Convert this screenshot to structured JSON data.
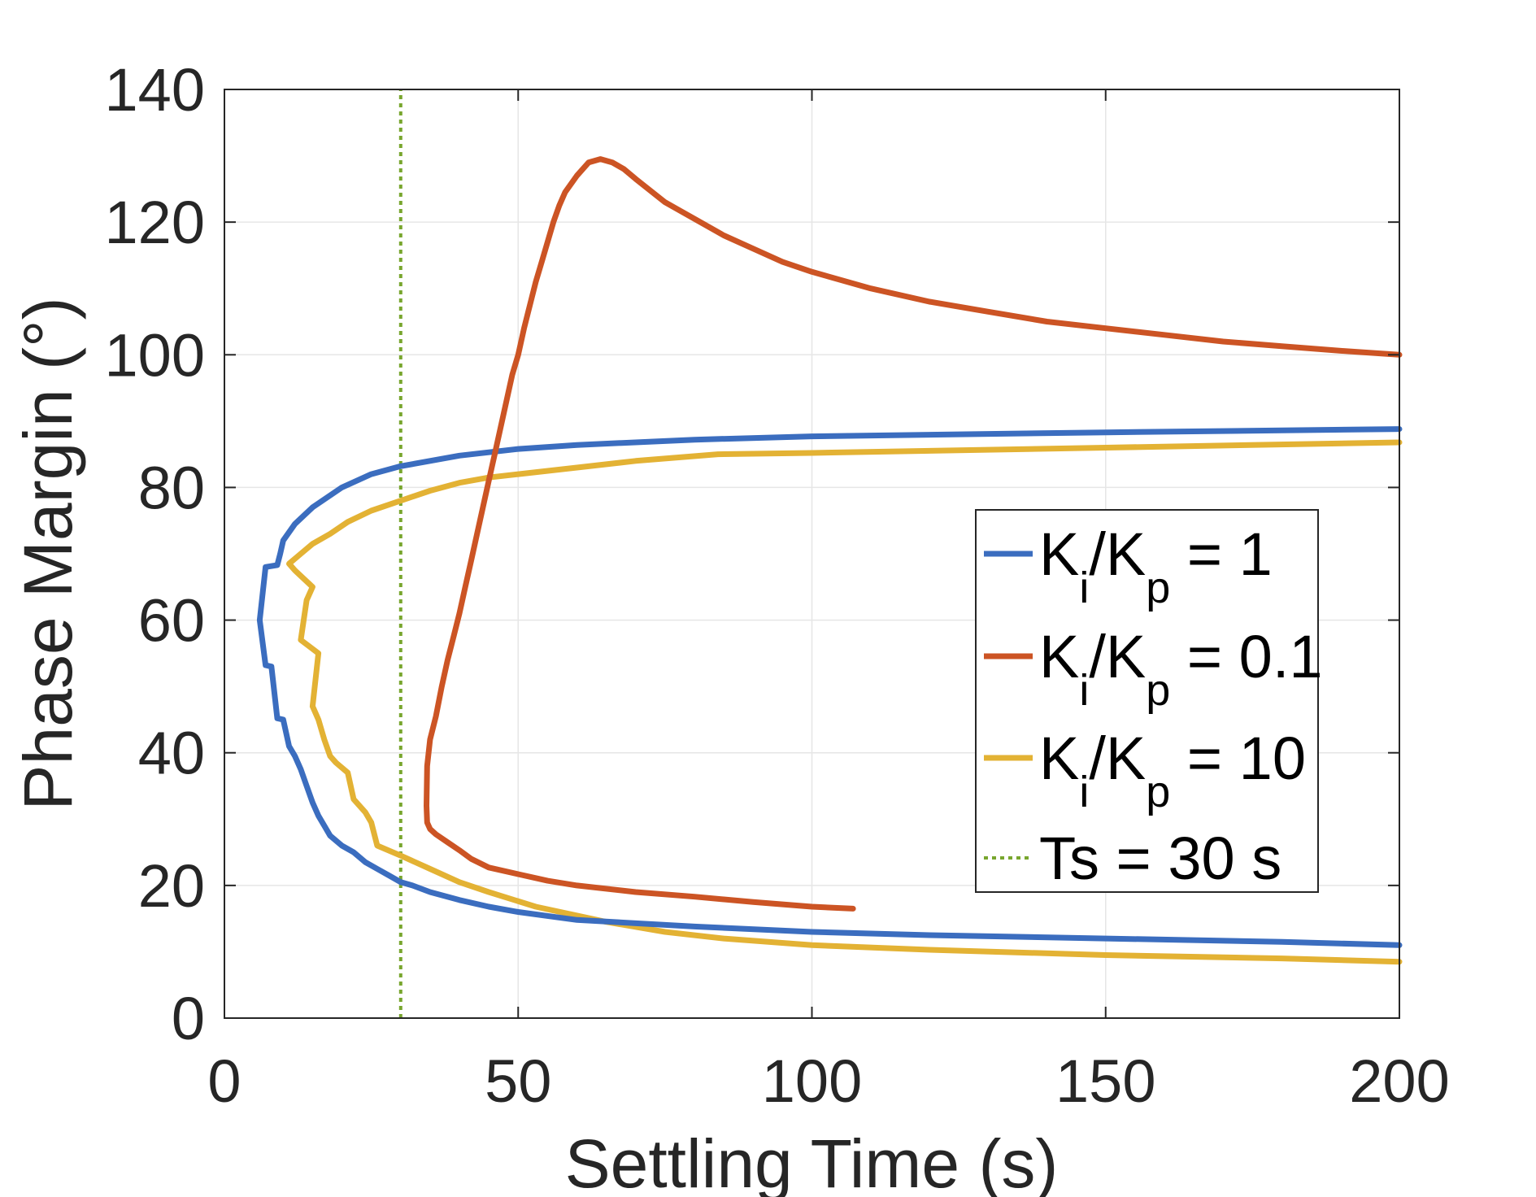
{
  "chart_data": {
    "type": "line",
    "title": "",
    "xlabel": "Settling Time (s)",
    "ylabel": "Phase Margin (°)",
    "xlim": [
      0,
      200
    ],
    "ylim": [
      0,
      140
    ],
    "xticks": [
      0,
      50,
      100,
      150,
      200
    ],
    "yticks": [
      0,
      20,
      40,
      60,
      80,
      100,
      120,
      140
    ],
    "grid": true,
    "legend_position": "right",
    "series": [
      {
        "name": "Ki/Kp = 1",
        "label_main": "K",
        "label_sub1": "i",
        "label_mid": "/K",
        "label_sub2": "p",
        "label_end": " = 1",
        "color": "#3b6dbf",
        "style": "solid",
        "points": [
          [
            200,
            11
          ],
          [
            180,
            11.5
          ],
          [
            150,
            12
          ],
          [
            120,
            12.5
          ],
          [
            100,
            13
          ],
          [
            80,
            13.8
          ],
          [
            60,
            14.8
          ],
          [
            50,
            16
          ],
          [
            45,
            16.8
          ],
          [
            40,
            17.8
          ],
          [
            35,
            19
          ],
          [
            32,
            20
          ],
          [
            30,
            20.5
          ],
          [
            28,
            21.5
          ],
          [
            26,
            22.5
          ],
          [
            24,
            23.5
          ],
          [
            22,
            25
          ],
          [
            20,
            26
          ],
          [
            18,
            27.5
          ],
          [
            17,
            29
          ],
          [
            16,
            30.5
          ],
          [
            15,
            32.5
          ],
          [
            14,
            35
          ],
          [
            13,
            37.5
          ],
          [
            12,
            39.5
          ],
          [
            11,
            41
          ],
          [
            10,
            45
          ],
          [
            9,
            45.2
          ],
          [
            8,
            53
          ],
          [
            7,
            53.2
          ],
          [
            6,
            60
          ],
          [
            7,
            68
          ],
          [
            9,
            68.3
          ],
          [
            9.5,
            70
          ],
          [
            10,
            72
          ],
          [
            12,
            74.5
          ],
          [
            15,
            77
          ],
          [
            20,
            80
          ],
          [
            25,
            82
          ],
          [
            30,
            83.2
          ],
          [
            40,
            84.8
          ],
          [
            50,
            85.8
          ],
          [
            60,
            86.4
          ],
          [
            80,
            87.2
          ],
          [
            100,
            87.7
          ],
          [
            150,
            88.3
          ],
          [
            200,
            88.8
          ]
        ]
      },
      {
        "name": "Ki/Kp = 0.1",
        "label_main": "K",
        "label_sub1": "i",
        "label_mid": "/K",
        "label_sub2": "p",
        "label_end": " = 0.1",
        "color": "#cc5424",
        "style": "solid",
        "points": [
          [
            107,
            16.5
          ],
          [
            100,
            16.8
          ],
          [
            90,
            17.5
          ],
          [
            80,
            18.3
          ],
          [
            70,
            19
          ],
          [
            60,
            20
          ],
          [
            55,
            20.7
          ],
          [
            50,
            21.7
          ],
          [
            45,
            22.7
          ],
          [
            42,
            24
          ],
          [
            40,
            25.3
          ],
          [
            38,
            26.5
          ],
          [
            36,
            27.7
          ],
          [
            35,
            28.5
          ],
          [
            34.5,
            29.5
          ],
          [
            34.4,
            32
          ],
          [
            34.5,
            38
          ],
          [
            35,
            42
          ],
          [
            36,
            45.5
          ],
          [
            37,
            50
          ],
          [
            38,
            54
          ],
          [
            39,
            57.5
          ],
          [
            40,
            61
          ],
          [
            41,
            65
          ],
          [
            42,
            69
          ],
          [
            43,
            73
          ],
          [
            44,
            77
          ],
          [
            45,
            81
          ],
          [
            46,
            85
          ],
          [
            47,
            89
          ],
          [
            48,
            93
          ],
          [
            49,
            97
          ],
          [
            50,
            100
          ],
          [
            51,
            104
          ],
          [
            52,
            107.5
          ],
          [
            53,
            111
          ],
          [
            54,
            114
          ],
          [
            55,
            117
          ],
          [
            56,
            120
          ],
          [
            57,
            122.5
          ],
          [
            58,
            124.5
          ],
          [
            60,
            127
          ],
          [
            62,
            129
          ],
          [
            64,
            129.5
          ],
          [
            66,
            129
          ],
          [
            68,
            128
          ],
          [
            70,
            126.5
          ],
          [
            75,
            123
          ],
          [
            80,
            120.5
          ],
          [
            85,
            118
          ],
          [
            90,
            116
          ],
          [
            95,
            114
          ],
          [
            100,
            112.5
          ],
          [
            110,
            110
          ],
          [
            120,
            108
          ],
          [
            130,
            106.5
          ],
          [
            140,
            105
          ],
          [
            150,
            104
          ],
          [
            160,
            103
          ],
          [
            170,
            102
          ],
          [
            180,
            101.3
          ],
          [
            190,
            100.6
          ],
          [
            200,
            100
          ]
        ]
      },
      {
        "name": "Ki/Kp = 10",
        "label_main": "K",
        "label_sub1": "i",
        "label_mid": "/K",
        "label_sub2": "p",
        "label_end": " = 10",
        "color": "#e3b234",
        "style": "solid",
        "points": [
          [
            200,
            8.5
          ],
          [
            180,
            9
          ],
          [
            150,
            9.5
          ],
          [
            120,
            10.3
          ],
          [
            100,
            11
          ],
          [
            85,
            12
          ],
          [
            75,
            13
          ],
          [
            65,
            14.5
          ],
          [
            53,
            16.8
          ],
          [
            45,
            19
          ],
          [
            40,
            20.5
          ],
          [
            35,
            22.5
          ],
          [
            30,
            24.5
          ],
          [
            26,
            26
          ],
          [
            25,
            29.5
          ],
          [
            24,
            31
          ],
          [
            22,
            33
          ],
          [
            21,
            37
          ],
          [
            19,
            38.5
          ],
          [
            18,
            39.5
          ],
          [
            17,
            42
          ],
          [
            16,
            45
          ],
          [
            15,
            47
          ],
          [
            16,
            55
          ],
          [
            13,
            57
          ],
          [
            14,
            63
          ],
          [
            15,
            65
          ],
          [
            12,
            67.5
          ],
          [
            11,
            68.5
          ],
          [
            13,
            70
          ],
          [
            15,
            71.5
          ],
          [
            18,
            73
          ],
          [
            21,
            74.8
          ],
          [
            25,
            76.5
          ],
          [
            30,
            78
          ],
          [
            35,
            79.5
          ],
          [
            40,
            80.7
          ],
          [
            45,
            81.5
          ],
          [
            50,
            82
          ],
          [
            60,
            83
          ],
          [
            70,
            84
          ],
          [
            84,
            85
          ],
          [
            100,
            85.2
          ],
          [
            150,
            86
          ],
          [
            200,
            86.8
          ]
        ]
      },
      {
        "name": "Ts = 30 s",
        "label_main": "Ts = 30 s",
        "color": "#78a62e",
        "style": "dotted",
        "points": [
          [
            30,
            0
          ],
          [
            30,
            140
          ]
        ]
      }
    ]
  }
}
